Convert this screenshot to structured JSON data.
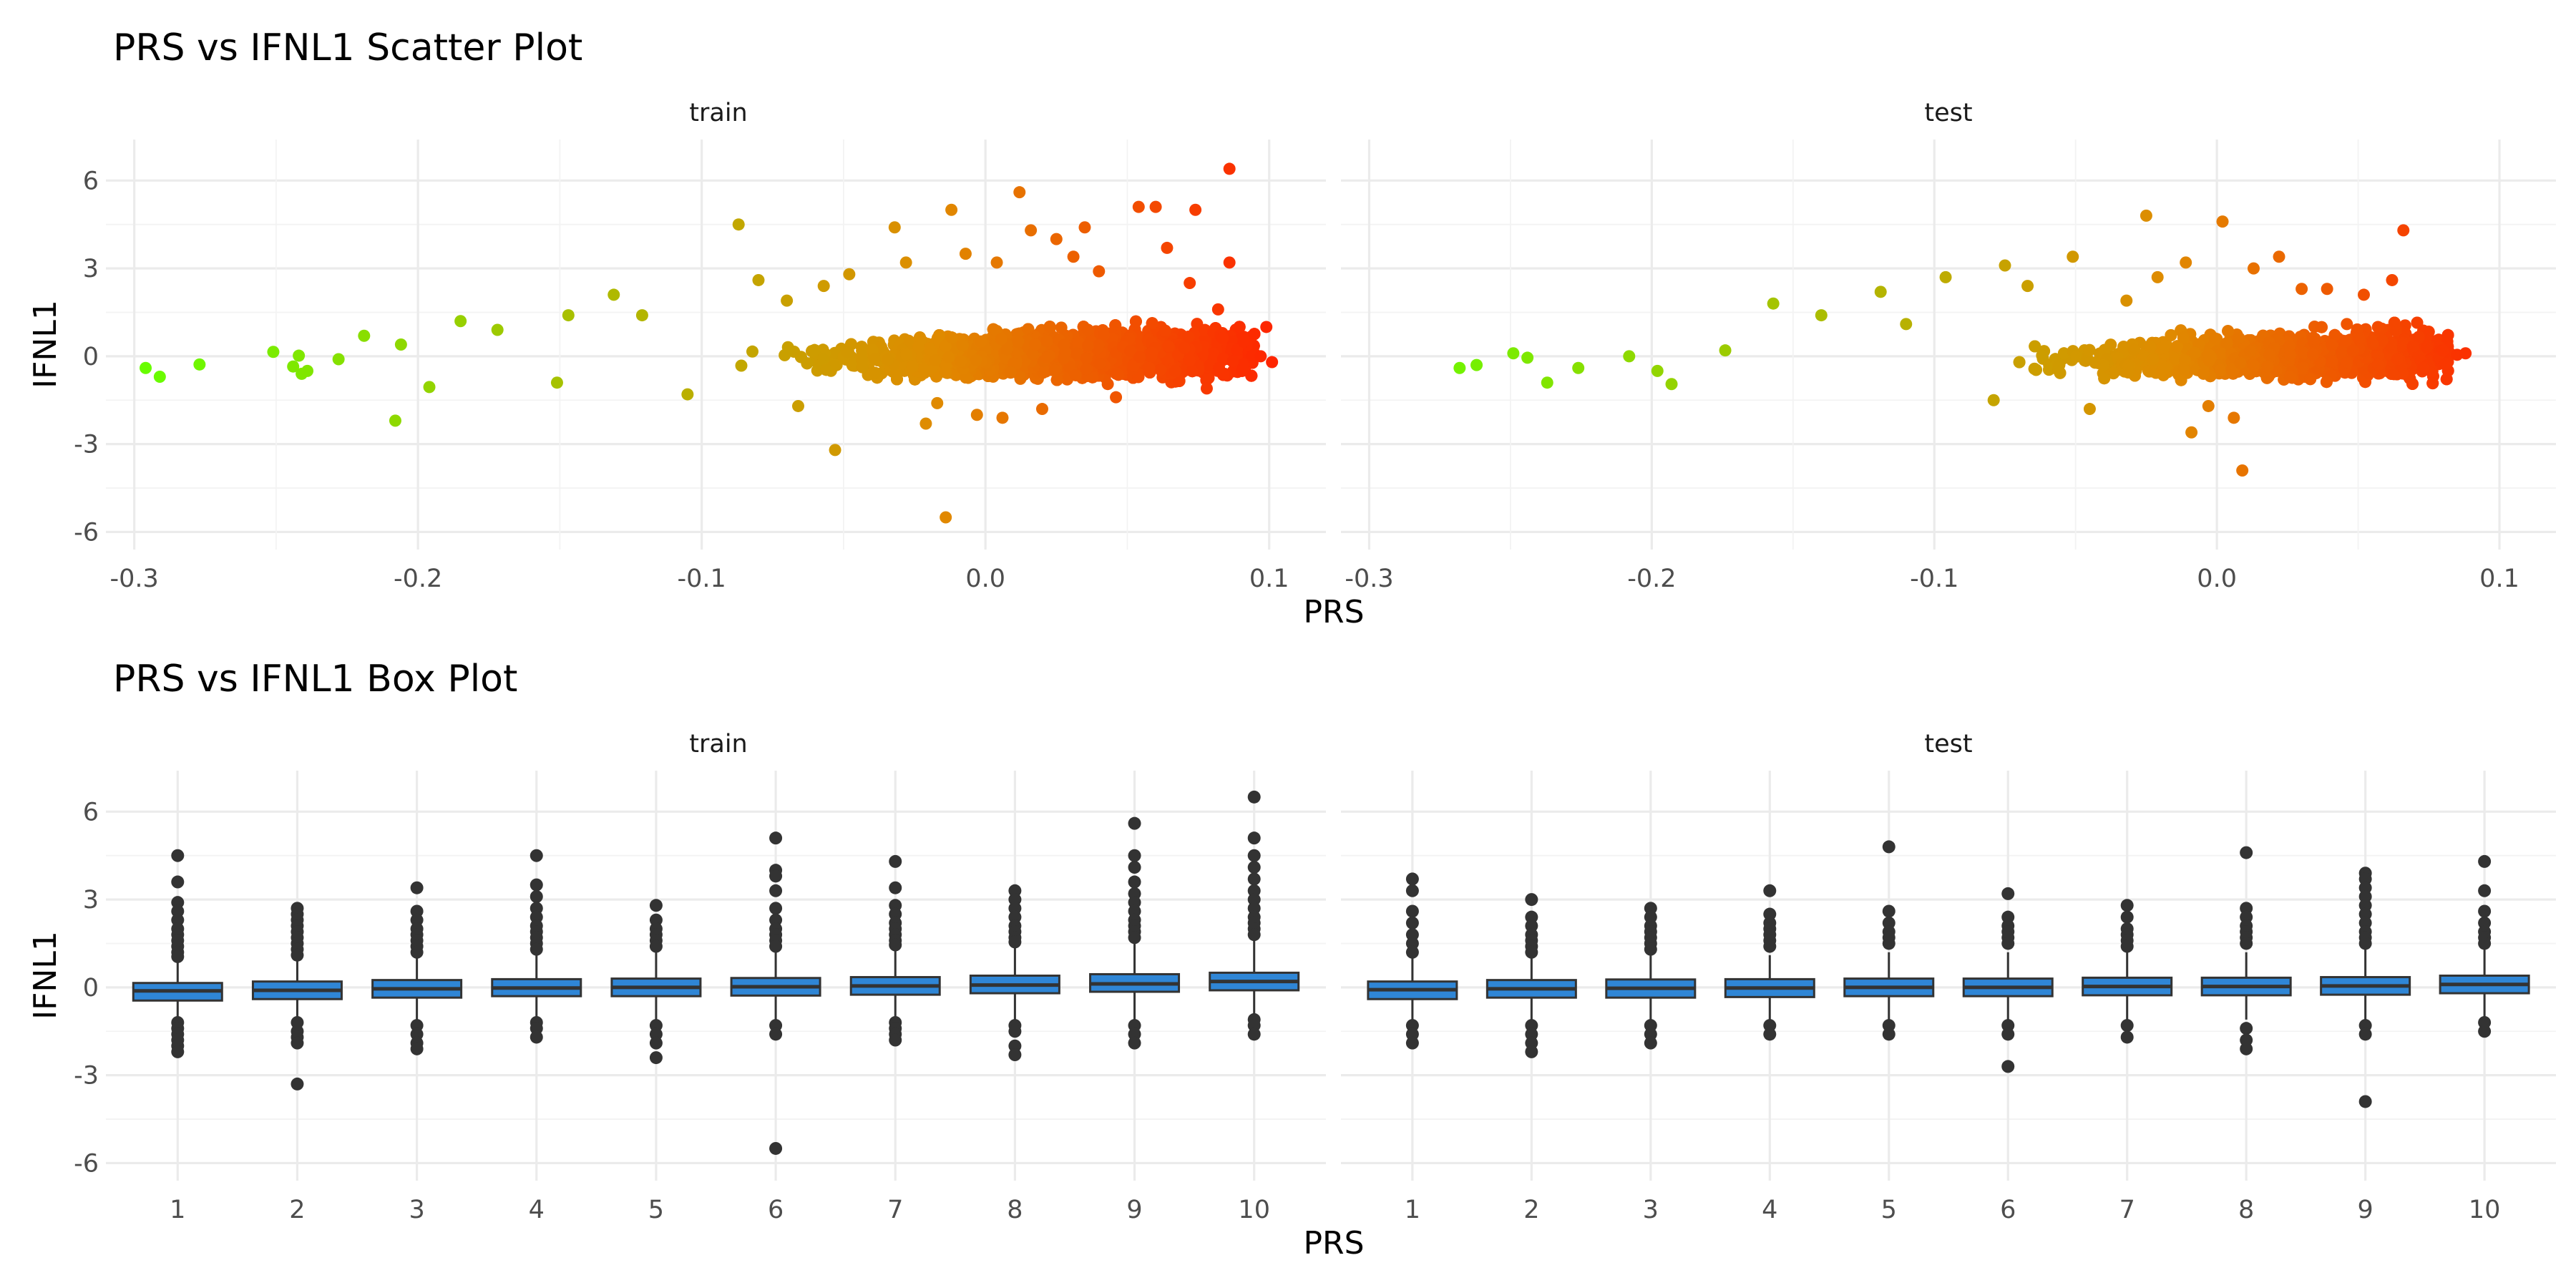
{
  "chart_data": [
    {
      "type": "scatter",
      "title": "PRS vs IFNL1 Scatter Plot",
      "xlabel": "PRS",
      "ylabel": "IFNL1",
      "xlim": [
        -0.31,
        0.12
      ],
      "ylim": [
        -6.6,
        7.4
      ],
      "xticks": [
        -0.3,
        -0.2,
        -0.1,
        0.0,
        0.1
      ],
      "xtick_labels": [
        "-0.3",
        "-0.2",
        "-0.1",
        "0.0",
        "0.1"
      ],
      "yticks": [
        -6,
        -3,
        0,
        3,
        6
      ],
      "ytick_labels": [
        "-6",
        "-3",
        "0",
        "3",
        "6"
      ],
      "grid": true,
      "color_scale": {
        "low": "#66ff00",
        "mid": "#e08a00",
        "high": "#ff2200"
      },
      "facets": [
        {
          "label": "train",
          "points": [
            [
              -0.296,
              -0.4
            ],
            [
              -0.291,
              -0.7
            ],
            [
              -0.277,
              -0.28
            ],
            [
              -0.251,
              0.15
            ],
            [
              -0.244,
              -0.35
            ],
            [
              -0.242,
              0.02
            ],
            [
              -0.241,
              -0.6
            ],
            [
              -0.239,
              -0.5
            ],
            [
              -0.228,
              -0.1
            ],
            [
              -0.219,
              0.7
            ],
            [
              -0.208,
              -2.2
            ],
            [
              -0.206,
              0.4
            ],
            [
              -0.196,
              -1.05
            ],
            [
              -0.185,
              1.2
            ],
            [
              -0.172,
              0.9
            ],
            [
              -0.151,
              -0.9
            ],
            [
              -0.147,
              1.4
            ],
            [
              -0.131,
              2.1
            ],
            [
              -0.121,
              1.4
            ],
            [
              -0.105,
              -1.3
            ],
            [
              -0.087,
              4.5
            ],
            [
              -0.08,
              2.6
            ],
            [
              -0.07,
              1.9
            ],
            [
              -0.066,
              -1.7
            ],
            [
              -0.057,
              2.4
            ],
            [
              -0.053,
              -3.2
            ],
            [
              -0.048,
              2.8
            ],
            [
              -0.032,
              4.4
            ],
            [
              -0.028,
              3.2
            ],
            [
              -0.021,
              -2.3
            ],
            [
              -0.017,
              -1.6
            ],
            [
              -0.014,
              -5.5
            ],
            [
              -0.012,
              5.0
            ],
            [
              -0.007,
              3.5
            ],
            [
              -0.003,
              -2.0
            ],
            [
              0.004,
              3.2
            ],
            [
              0.006,
              -2.1
            ],
            [
              0.012,
              5.6
            ],
            [
              0.016,
              4.3
            ],
            [
              0.02,
              -1.8
            ],
            [
              0.025,
              4.0
            ],
            [
              0.031,
              3.4
            ],
            [
              0.035,
              4.4
            ],
            [
              0.04,
              2.9
            ],
            [
              0.046,
              -1.4
            ],
            [
              0.054,
              5.1
            ],
            [
              0.06,
              5.1
            ],
            [
              0.064,
              3.7
            ],
            [
              0.072,
              2.5
            ],
            [
              0.074,
              5.0
            ],
            [
              0.078,
              -1.1
            ],
            [
              0.082,
              1.6
            ],
            [
              0.086,
              6.4
            ],
            [
              0.086,
              3.2
            ],
            [
              0.091,
              0.5
            ],
            [
              0.097,
              0.0
            ],
            [
              0.099,
              1.0
            ],
            [
              0.101,
              -0.2
            ]
          ]
        },
        {
          "label": "test",
          "points": [
            [
              -0.268,
              -0.4
            ],
            [
              -0.262,
              -0.3
            ],
            [
              -0.249,
              0.1
            ],
            [
              -0.244,
              -0.05
            ],
            [
              -0.237,
              -0.9
            ],
            [
              -0.226,
              -0.4
            ],
            [
              -0.208,
              0.0
            ],
            [
              -0.198,
              -0.5
            ],
            [
              -0.193,
              -0.95
            ],
            [
              -0.174,
              0.2
            ],
            [
              -0.157,
              1.8
            ],
            [
              -0.14,
              1.4
            ],
            [
              -0.119,
              2.2
            ],
            [
              -0.11,
              1.1
            ],
            [
              -0.096,
              2.7
            ],
            [
              -0.079,
              -1.5
            ],
            [
              -0.075,
              3.1
            ],
            [
              -0.067,
              2.4
            ],
            [
              -0.051,
              3.4
            ],
            [
              -0.045,
              -1.8
            ],
            [
              -0.032,
              1.9
            ],
            [
              -0.025,
              4.8
            ],
            [
              -0.021,
              2.7
            ],
            [
              -0.011,
              3.2
            ],
            [
              -0.009,
              -2.6
            ],
            [
              -0.003,
              -1.7
            ],
            [
              0.002,
              4.6
            ],
            [
              0.006,
              -2.1
            ],
            [
              0.009,
              -3.9
            ],
            [
              0.013,
              3.0
            ],
            [
              0.022,
              3.4
            ],
            [
              0.03,
              2.3
            ],
            [
              0.039,
              2.3
            ],
            [
              0.046,
              1.1
            ],
            [
              0.052,
              2.1
            ],
            [
              0.057,
              1.0
            ],
            [
              0.062,
              2.6
            ],
            [
              0.066,
              4.3
            ],
            [
              0.073,
              -0.4
            ],
            [
              0.08,
              0.2
            ],
            [
              0.085,
              0.05
            ],
            [
              0.088,
              0.1
            ]
          ]
        }
      ]
    },
    {
      "type": "box",
      "title": "PRS vs IFNL1 Box Plot",
      "xlabel": "PRS",
      "ylabel": "IFNL1",
      "categories": [
        "1",
        "2",
        "3",
        "4",
        "5",
        "6",
        "7",
        "8",
        "9",
        "10"
      ],
      "ylim": [
        -6.6,
        7.4
      ],
      "yticks": [
        -6,
        -3,
        0,
        3,
        6
      ],
      "ytick_labels": [
        "-6",
        "-3",
        "0",
        "3",
        "6"
      ],
      "grid": true,
      "box_fill": "#2f86d6",
      "line_color": "#333333",
      "facets": [
        {
          "label": "train",
          "boxes": [
            {
              "q1": -0.45,
              "median": -0.12,
              "q3": 0.15,
              "lower": -1.0,
              "upper": 0.95,
              "outliers": [
                4.5,
                3.6,
                2.9,
                2.6,
                2.3,
                2.0,
                1.8,
                1.6,
                1.4,
                1.2,
                1.05,
                -1.2,
                -1.4,
                -1.6,
                -1.8,
                -2.0,
                -2.2
              ]
            },
            {
              "q1": -0.4,
              "median": -0.1,
              "q3": 0.2,
              "lower": -1.0,
              "upper": 1.0,
              "outliers": [
                2.7,
                2.5,
                2.3,
                2.1,
                1.9,
                1.7,
                1.5,
                1.3,
                1.1,
                -1.2,
                -1.5,
                -1.7,
                -1.9,
                -3.3
              ]
            },
            {
              "q1": -0.35,
              "median": -0.05,
              "q3": 0.25,
              "lower": -1.1,
              "upper": 1.1,
              "outliers": [
                3.4,
                2.6,
                2.3,
                2.0,
                1.8,
                1.6,
                1.4,
                1.2,
                -1.3,
                -1.6,
                -1.9,
                -2.1
              ]
            },
            {
              "q1": -0.3,
              "median": -0.02,
              "q3": 0.28,
              "lower": -1.1,
              "upper": 1.1,
              "outliers": [
                4.5,
                3.5,
                3.1,
                2.7,
                2.4,
                2.1,
                1.9,
                1.7,
                1.5,
                1.3,
                -1.2,
                -1.4,
                -1.7
              ]
            },
            {
              "q1": -0.3,
              "median": 0.0,
              "q3": 0.3,
              "lower": -1.1,
              "upper": 1.2,
              "outliers": [
                2.8,
                2.3,
                2.0,
                1.8,
                1.6,
                1.4,
                -1.3,
                -1.6,
                -1.9,
                -2.4
              ]
            },
            {
              "q1": -0.28,
              "median": 0.02,
              "q3": 0.32,
              "lower": -1.1,
              "upper": 1.2,
              "outliers": [
                5.1,
                4.0,
                3.8,
                3.3,
                2.7,
                2.3,
                2.0,
                1.8,
                1.6,
                1.4,
                -1.3,
                -1.6,
                -5.5
              ]
            },
            {
              "q1": -0.25,
              "median": 0.05,
              "q3": 0.35,
              "lower": -1.1,
              "upper": 1.3,
              "outliers": [
                4.3,
                3.4,
                2.8,
                2.5,
                2.2,
                2.0,
                1.8,
                1.6,
                1.45,
                -1.2,
                -1.4,
                -1.6,
                -1.8
              ]
            },
            {
              "q1": -0.2,
              "median": 0.08,
              "q3": 0.4,
              "lower": -1.1,
              "upper": 1.4,
              "outliers": [
                3.3,
                3.0,
                2.7,
                2.4,
                2.1,
                1.9,
                1.7,
                1.55,
                -1.3,
                -1.5,
                -2.0,
                -2.3
              ]
            },
            {
              "q1": -0.15,
              "median": 0.12,
              "q3": 0.45,
              "lower": -1.1,
              "upper": 1.5,
              "outliers": [
                5.6,
                4.5,
                4.1,
                3.6,
                3.2,
                2.9,
                2.6,
                2.3,
                2.1,
                1.9,
                1.7,
                -1.3,
                -1.6,
                -1.9
              ]
            },
            {
              "q1": -0.1,
              "median": 0.2,
              "q3": 0.5,
              "lower": -1.0,
              "upper": 1.6,
              "outliers": [
                6.5,
                5.1,
                4.5,
                4.1,
                3.7,
                3.3,
                3.0,
                2.7,
                2.4,
                2.2,
                2.0,
                1.8,
                -1.1,
                -1.3,
                -1.6
              ]
            }
          ]
        },
        {
          "label": "test",
          "boxes": [
            {
              "q1": -0.4,
              "median": -0.08,
              "q3": 0.2,
              "lower": -1.1,
              "upper": 1.0,
              "outliers": [
                3.7,
                3.3,
                2.6,
                2.2,
                1.8,
                1.5,
                1.2,
                -1.3,
                -1.6,
                -1.9
              ]
            },
            {
              "q1": -0.35,
              "median": -0.05,
              "q3": 0.25,
              "lower": -1.1,
              "upper": 1.0,
              "outliers": [
                3.0,
                2.4,
                2.1,
                1.8,
                1.6,
                1.4,
                1.2,
                -1.3,
                -1.6,
                -1.9,
                -2.2
              ]
            },
            {
              "q1": -0.35,
              "median": -0.03,
              "q3": 0.27,
              "lower": -1.1,
              "upper": 1.1,
              "outliers": [
                2.7,
                2.4,
                2.1,
                1.9,
                1.7,
                1.5,
                1.3,
                -1.3,
                -1.6,
                -1.9
              ]
            },
            {
              "q1": -0.33,
              "median": -0.02,
              "q3": 0.28,
              "lower": -1.1,
              "upper": 1.1,
              "outliers": [
                3.3,
                2.5,
                2.2,
                2.0,
                1.8,
                1.6,
                1.4,
                -1.3,
                -1.6
              ]
            },
            {
              "q1": -0.3,
              "median": 0.0,
              "q3": 0.3,
              "lower": -1.1,
              "upper": 1.2,
              "outliers": [
                4.8,
                2.6,
                2.2,
                1.9,
                1.7,
                1.5,
                -1.3,
                -1.6
              ]
            },
            {
              "q1": -0.3,
              "median": 0.0,
              "q3": 0.3,
              "lower": -1.1,
              "upper": 1.2,
              "outliers": [
                3.2,
                2.4,
                2.1,
                1.9,
                1.7,
                1.5,
                -1.3,
                -1.6,
                -2.7
              ]
            },
            {
              "q1": -0.27,
              "median": 0.03,
              "q3": 0.33,
              "lower": -1.1,
              "upper": 1.2,
              "outliers": [
                2.8,
                2.4,
                2.0,
                1.8,
                1.6,
                1.4,
                -1.3,
                -1.7
              ]
            },
            {
              "q1": -0.27,
              "median": 0.03,
              "q3": 0.33,
              "lower": -1.1,
              "upper": 1.2,
              "outliers": [
                4.6,
                2.7,
                2.4,
                2.1,
                1.9,
                1.7,
                1.5,
                -1.4,
                -1.8,
                -2.1
              ]
            },
            {
              "q1": -0.25,
              "median": 0.05,
              "q3": 0.35,
              "lower": -1.1,
              "upper": 1.3,
              "outliers": [
                3.9,
                3.7,
                3.4,
                3.1,
                2.8,
                2.5,
                2.2,
                1.9,
                1.7,
                1.5,
                -1.3,
                -1.6,
                -3.9
              ]
            },
            {
              "q1": -0.2,
              "median": 0.1,
              "q3": 0.4,
              "lower": -1.0,
              "upper": 1.4,
              "outliers": [
                4.3,
                3.3,
                2.6,
                2.2,
                1.9,
                1.7,
                1.5,
                -1.2,
                -1.5
              ]
            }
          ]
        }
      ]
    }
  ]
}
